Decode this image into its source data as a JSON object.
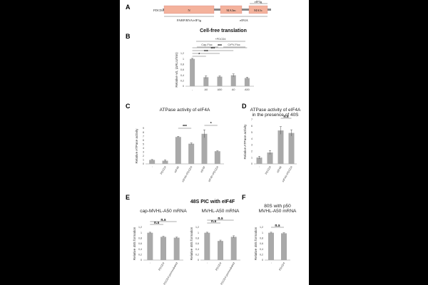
{
  "panel_A": {
    "label": "A",
    "protein_label": "PDCD4",
    "domains": [
      "N",
      "MA3m",
      "MA3c"
    ],
    "top_label": "eIF3g",
    "bottom_left_label": "PABP/RNA/eIF3g",
    "bottom_right_label": "eIF4A"
  },
  "section_top_title": "Cell-free translation",
  "section_mid_title": "48S PIC with eIF4F",
  "colors": {
    "bar": "#a9a9a9",
    "domain_fill": "#f4b29c",
    "linker": "#888888"
  },
  "chart_data": [
    {
      "id": "B",
      "type": "bar",
      "label": "B",
      "title": "",
      "ylabel": "Relative v0, (ΔRLU/min)",
      "yticks": [
        "0",
        "0,2",
        "0,4",
        "0,6",
        "0,8",
        "1",
        "1,2"
      ],
      "ylim": [
        0,
        1.2
      ],
      "categories": [
        "-",
        "A0",
        "A50",
        "A0",
        "A50"
      ],
      "values": [
        1.0,
        0.33,
        0.35,
        0.4,
        0.3
      ],
      "errors": [
        0.02,
        0.05,
        0.03,
        0.05,
        0.03
      ],
      "group_top": "+PDCD4",
      "groups": [
        "Cap-Fluc",
        "CrPV-Fluc"
      ],
      "significance": [
        "*",
        "***",
        "***",
        "***"
      ]
    },
    {
      "id": "C",
      "type": "bar",
      "label": "C",
      "title": "ATPase activity of eIF4A",
      "ylabel": "Relative ATPase activity",
      "yticks": [
        "0",
        "1",
        "2",
        "3",
        "4",
        "5",
        "6",
        "7",
        "8",
        "9"
      ],
      "ylim": [
        0,
        9
      ],
      "categories": [
        "-",
        "PDCD4",
        "eIF4A",
        "eIF4A+PDCD4",
        "eIF4F",
        "eIF4F+PDCD4"
      ],
      "values": [
        1.0,
        0.8,
        6.8,
        5.1,
        7.6,
        3.2
      ],
      "errors": [
        0.1,
        0.2,
        0.15,
        0.2,
        1.0,
        0.1
      ],
      "significance": [
        "***",
        "*"
      ]
    },
    {
      "id": "D",
      "type": "bar",
      "label": "D",
      "title": "ATPase activity of eIF4A",
      "title2": "in the presence of 40S",
      "ylabel": "Relative ATPase activity",
      "yticks": [
        "0",
        "1",
        "2",
        "3",
        "4",
        "5",
        "6",
        "7"
      ],
      "ylim": [
        0,
        7
      ],
      "categories": [
        "-",
        "PDCD4",
        "eIF4A",
        "eIF4A+PDCD4"
      ],
      "values": [
        1.0,
        1.8,
        5.3,
        4.9
      ],
      "errors": [
        0.2,
        0.3,
        0.6,
        0.5
      ],
      "significance": [
        "n.s"
      ]
    },
    {
      "id": "E1",
      "type": "bar",
      "label": "E",
      "title": "cap-MVHL-A50 mRNA",
      "ylabel": "Relative 48S formation",
      "yticks": [
        "0",
        "0,2",
        "0,4",
        "0,6",
        "0,8",
        "1",
        "1,2"
      ],
      "ylim": [
        0,
        1.2
      ],
      "categories": [
        "-",
        "PDCD4",
        "PDCD4 preincubated"
      ],
      "values": [
        1.0,
        0.85,
        0.82
      ],
      "errors": [
        0.02,
        0.02,
        0.02
      ],
      "significance": [
        "n.s",
        "n.s"
      ]
    },
    {
      "id": "E2",
      "type": "bar",
      "label": "",
      "title": "MVHL-A50 mRNA",
      "ylabel": "Relative 48S formation",
      "yticks": [
        "0",
        "0,2",
        "0,4",
        "0,6",
        "0,8",
        "1",
        "1,2"
      ],
      "ylim": [
        0,
        1.2
      ],
      "categories": [
        "-",
        "PDCD4",
        "PDCD4 preincubated"
      ],
      "values": [
        1.0,
        0.7,
        0.85
      ],
      "errors": [
        0.02,
        0.03,
        0.04
      ],
      "significance": [
        "n.s",
        "n.s"
      ]
    },
    {
      "id": "F",
      "type": "bar",
      "label": "F",
      "title": "80S with p50",
      "title2": "MVHL-A50 mRNA",
      "ylabel": "Relative 48S formation",
      "yticks": [
        "0",
        "0,2",
        "0,4",
        "0,6",
        "0,8",
        "1",
        "1,2"
      ],
      "ylim": [
        0,
        1.2
      ],
      "categories": [
        "-",
        "PDCD4"
      ],
      "values": [
        1.0,
        0.98
      ],
      "errors": [
        0.02,
        0.02
      ],
      "significance": [
        "n.s"
      ]
    }
  ]
}
